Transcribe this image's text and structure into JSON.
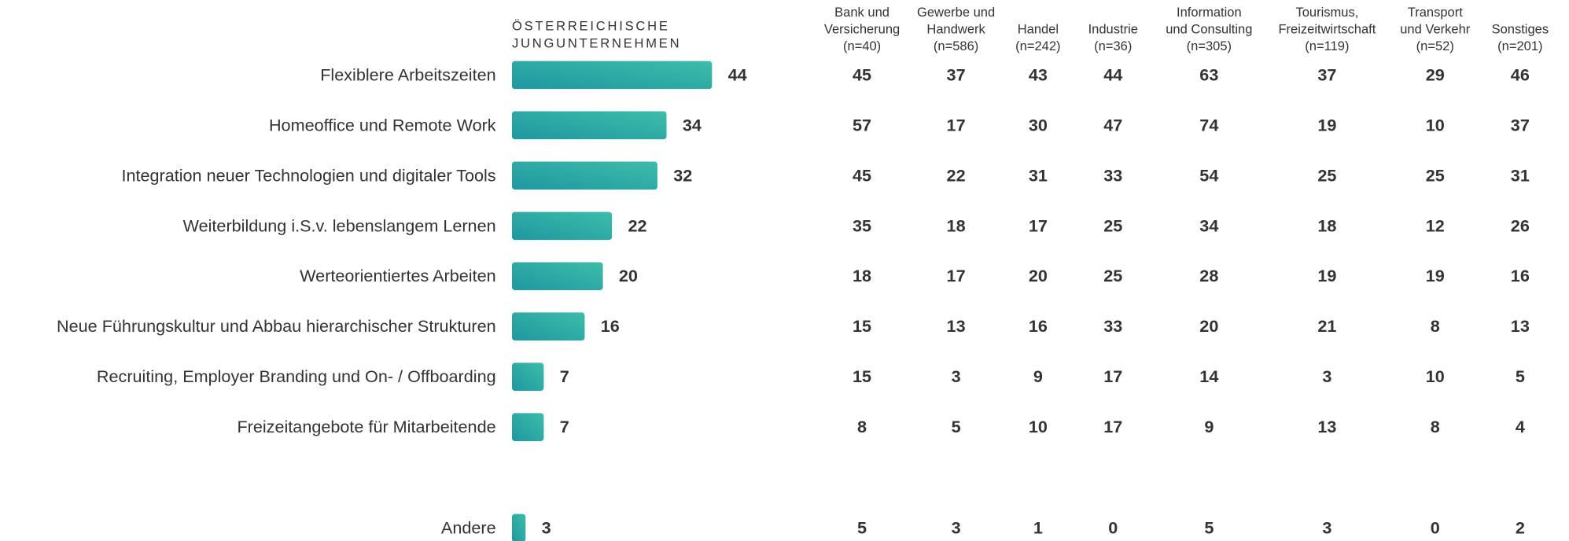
{
  "chart_data": {
    "type": "bar",
    "orientation": "horizontal",
    "title": [
      "ÖSTERREICHISCHE",
      "JUNGUNTERNEHMEN"
    ],
    "categories": [
      "Flexiblere Arbeitszeiten",
      "Homeoffice und Remote Work",
      "Integration neuer Technologien und digitaler Tools",
      "Weiterbildung i.S.v. lebenslangem Lernen",
      "Werteorientiertes Arbeiten",
      "Neue Führungskultur und Abbau hierarchischer Strukturen",
      "Recruiting, Employer Branding und On- / Offboarding",
      "Freizeitangebote für Mitarbeitende",
      "Andere"
    ],
    "values": [
      44,
      34,
      32,
      22,
      20,
      16,
      7,
      7,
      3
    ],
    "color": [
      "#1f97a0",
      "#3dbdaa"
    ]
  },
  "table": {
    "columns": [
      {
        "label": [
          "Bank und",
          "Versicherung"
        ],
        "n": "(n=40)"
      },
      {
        "label": [
          "Gewerbe und",
          "Handwerk"
        ],
        "n": "(n=586)"
      },
      {
        "label": [
          "Handel"
        ],
        "n": "(n=242)"
      },
      {
        "label": [
          "Industrie"
        ],
        "n": "(n=36)"
      },
      {
        "label": [
          "Information",
          "und Consulting"
        ],
        "n": "(n=305)"
      },
      {
        "label": [
          "Tourismus,",
          "Freizeitwirtschaft"
        ],
        "n": "(n=119)"
      },
      {
        "label": [
          "Transport",
          "und Verkehr"
        ],
        "n": "(n=52)"
      },
      {
        "label": [
          "Sonstiges"
        ],
        "n": "(n=201)"
      }
    ],
    "rows": [
      [
        45,
        37,
        43,
        44,
        63,
        37,
        29,
        46
      ],
      [
        57,
        17,
        30,
        47,
        74,
        19,
        10,
        37
      ],
      [
        45,
        22,
        31,
        33,
        54,
        25,
        25,
        31
      ],
      [
        35,
        18,
        17,
        25,
        34,
        18,
        12,
        26
      ],
      [
        18,
        17,
        20,
        25,
        28,
        19,
        19,
        16
      ],
      [
        15,
        13,
        16,
        33,
        20,
        21,
        8,
        13
      ],
      [
        15,
        3,
        9,
        17,
        14,
        3,
        10,
        5
      ],
      [
        8,
        5,
        10,
        17,
        9,
        13,
        8,
        4
      ],
      [
        5,
        3,
        1,
        0,
        5,
        3,
        0,
        2
      ]
    ]
  }
}
